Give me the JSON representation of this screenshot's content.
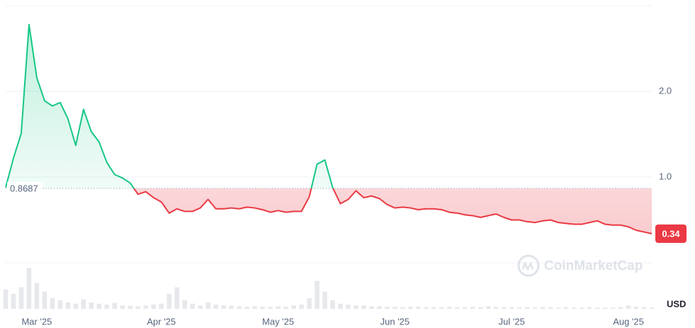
{
  "chart_data": {
    "type": "line",
    "watermark": "CoinMarketCap",
    "currency": "USD",
    "baseline": 0.8687,
    "current_price": 0.34,
    "up_color": "#16c784",
    "down_color": "#ea3943",
    "volume_color": "#e6e8ec",
    "ylim": [
      0,
      3
    ],
    "yticks": [
      {
        "value": 1,
        "label": "1.0"
      },
      {
        "value": 2,
        "label": "2.0"
      }
    ],
    "volume_lim": [
      0,
      100
    ],
    "categories": [
      null,
      null,
      null,
      null,
      "Mar '25",
      null,
      null,
      null,
      null,
      null,
      null,
      null,
      null,
      null,
      null,
      null,
      null,
      null,
      null,
      null,
      "Apr '25",
      null,
      null,
      null,
      null,
      null,
      null,
      null,
      null,
      null,
      null,
      null,
      null,
      null,
      null,
      "May '25",
      null,
      null,
      null,
      null,
      null,
      null,
      null,
      null,
      null,
      null,
      null,
      null,
      null,
      null,
      "Jun '25",
      null,
      null,
      null,
      null,
      null,
      null,
      null,
      null,
      null,
      null,
      null,
      null,
      null,
      null,
      "Jul '25",
      null,
      null,
      null,
      null,
      null,
      null,
      null,
      null,
      null,
      null,
      null,
      null,
      null,
      null,
      "Aug '25",
      null,
      null,
      null
    ],
    "values": [
      0.88,
      1.22,
      1.51,
      2.78,
      2.16,
      1.89,
      1.83,
      1.87,
      1.68,
      1.37,
      1.79,
      1.53,
      1.41,
      1.17,
      1.03,
      0.99,
      0.93,
      0.8,
      0.83,
      0.76,
      0.71,
      0.58,
      0.63,
      0.6,
      0.6,
      0.64,
      0.74,
      0.63,
      0.63,
      0.64,
      0.63,
      0.65,
      0.64,
      0.62,
      0.59,
      0.61,
      0.59,
      0.6,
      0.6,
      0.77,
      1.15,
      1.2,
      0.88,
      0.69,
      0.74,
      0.84,
      0.76,
      0.78,
      0.75,
      0.68,
      0.64,
      0.65,
      0.64,
      0.62,
      0.63,
      0.63,
      0.62,
      0.59,
      0.58,
      0.56,
      0.55,
      0.53,
      0.55,
      0.57,
      0.53,
      0.5,
      0.5,
      0.48,
      0.47,
      0.49,
      0.5,
      0.47,
      0.46,
      0.45,
      0.45,
      0.47,
      0.49,
      0.45,
      0.44,
      0.44,
      0.42,
      0.38,
      0.36,
      0.34
    ],
    "volume": [
      45,
      35,
      50,
      95,
      60,
      40,
      25,
      20,
      15,
      12,
      22,
      15,
      12,
      10,
      14,
      8,
      7,
      6,
      8,
      10,
      12,
      35,
      50,
      20,
      12,
      8,
      15,
      10,
      8,
      7,
      6,
      5,
      6,
      5,
      5,
      6,
      5,
      8,
      10,
      25,
      65,
      40,
      20,
      12,
      10,
      8,
      8,
      6,
      6,
      5,
      5,
      4,
      5,
      5,
      4,
      4,
      4,
      5,
      4,
      4,
      5,
      4,
      6,
      5,
      4,
      4,
      3,
      4,
      3,
      4,
      4,
      3,
      4,
      3,
      3,
      4,
      3,
      3,
      3,
      4,
      8,
      5,
      4,
      3
    ]
  }
}
